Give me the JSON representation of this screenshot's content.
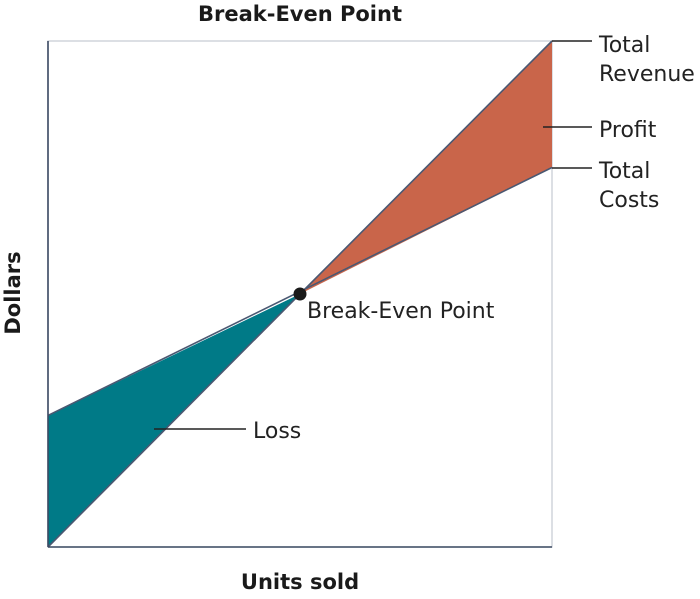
{
  "chart_data": {
    "type": "line",
    "title": "Break-Even Point",
    "xlabel": "Units sold",
    "ylabel": "Dollars",
    "x": [
      0,
      0.5,
      1
    ],
    "series": [
      {
        "name": "Total Revenue",
        "values": [
          0,
          0.5,
          1.0
        ]
      },
      {
        "name": "Total Costs",
        "values": [
          0.26,
          0.5,
          0.75
        ]
      }
    ],
    "annotations": {
      "break_even": "Break-Even Point",
      "profit": "Profit",
      "loss": "Loss"
    },
    "regions": [
      {
        "name": "Loss",
        "color": "#007a87"
      },
      {
        "name": "Profit",
        "color": "#c9654a"
      }
    ],
    "grid": false
  },
  "labels": {
    "total_revenue": [
      "Total",
      "Revenue"
    ],
    "total_costs": [
      "Total",
      "Costs"
    ]
  },
  "colors": {
    "loss_fill": "#007a87",
    "profit_fill": "#c9654a",
    "point": "#1a1a1a"
  }
}
